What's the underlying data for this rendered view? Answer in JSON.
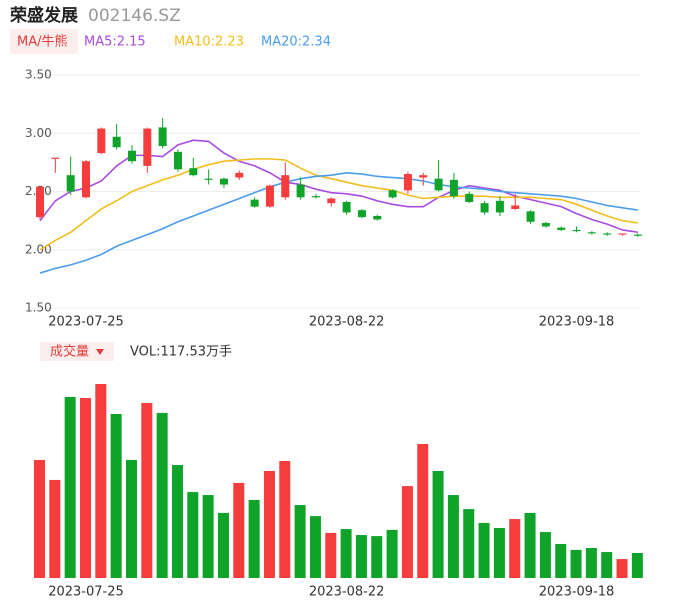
{
  "header": {
    "name": "荣盛发展",
    "code": "002146.SZ"
  },
  "chart_data": [
    {
      "type": "candlestick",
      "legend": [
        "MA/牛熊",
        "MA5:2.15",
        "MA10:2.23",
        "MA20:2.34"
      ],
      "categories": [
        null,
        null,
        null,
        "2023-07-25",
        null,
        null,
        null,
        null,
        null,
        null,
        null,
        null,
        null,
        null,
        null,
        null,
        null,
        null,
        null,
        null,
        "2023-08-22",
        null,
        null,
        null,
        null,
        null,
        null,
        null,
        null,
        null,
        null,
        null,
        null,
        null,
        null,
        "2023-09-18",
        null,
        null,
        null,
        null
      ],
      "open": [
        2.28,
        2.78,
        2.64,
        2.45,
        2.83,
        2.97,
        2.85,
        2.72,
        3.05,
        2.84,
        2.7,
        2.61,
        2.61,
        2.62,
        2.43,
        2.37,
        2.45,
        2.56,
        2.46,
        2.4,
        2.41,
        2.34,
        2.29,
        2.51,
        2.51,
        2.62,
        2.61,
        2.6,
        2.48,
        2.4,
        2.42,
        2.35,
        2.33,
        2.23,
        2.19,
        2.17,
        2.15,
        2.14,
        2.13,
        2.13
      ],
      "high": [
        2.55,
        2.79,
        2.8,
        2.77,
        3.05,
        3.08,
        2.9,
        3.05,
        3.13,
        2.86,
        2.79,
        2.69,
        2.62,
        2.68,
        2.45,
        2.56,
        2.75,
        2.62,
        2.48,
        2.45,
        2.42,
        2.35,
        2.3,
        2.52,
        2.67,
        2.66,
        2.77,
        2.66,
        2.5,
        2.42,
        2.46,
        2.48,
        2.34,
        2.24,
        2.2,
        2.2,
        2.16,
        2.15,
        2.14,
        2.14
      ],
      "low": [
        2.26,
        2.66,
        2.47,
        2.44,
        2.82,
        2.86,
        2.74,
        2.66,
        2.87,
        2.67,
        2.63,
        2.56,
        2.53,
        2.6,
        2.36,
        2.36,
        2.43,
        2.43,
        2.44,
        2.37,
        2.3,
        2.27,
        2.25,
        2.44,
        2.48,
        2.55,
        2.5,
        2.44,
        2.4,
        2.3,
        2.29,
        2.34,
        2.22,
        2.19,
        2.16,
        2.15,
        2.13,
        2.12,
        2.12,
        2.11
      ],
      "close": [
        2.54,
        2.79,
        2.5,
        2.76,
        3.04,
        2.88,
        2.76,
        3.04,
        2.89,
        2.69,
        2.64,
        2.6,
        2.56,
        2.66,
        2.37,
        2.55,
        2.64,
        2.45,
        2.45,
        2.44,
        2.32,
        2.28,
        2.26,
        2.45,
        2.65,
        2.64,
        2.51,
        2.46,
        2.41,
        2.32,
        2.32,
        2.38,
        2.24,
        2.2,
        2.17,
        2.16,
        2.14,
        2.13,
        2.14,
        2.12
      ],
      "up_color": "#f53d3d",
      "down_color": "#10a32a",
      "series": [
        {
          "name": "MA5",
          "color": "#a94ce0",
          "values": [
            2.25,
            2.42,
            2.5,
            2.53,
            2.59,
            2.72,
            2.81,
            2.81,
            2.8,
            2.9,
            2.94,
            2.93,
            2.83,
            2.76,
            2.72,
            2.66,
            2.58,
            2.56,
            2.52,
            2.49,
            2.48,
            2.46,
            2.42,
            2.39,
            2.37,
            2.37,
            2.45,
            2.51,
            2.55,
            2.53,
            2.51,
            2.46,
            2.43,
            2.4,
            2.37,
            2.31,
            2.26,
            2.22,
            2.17,
            2.15
          ]
        },
        {
          "name": "MA10",
          "color": "#f2bd1d",
          "values": [
            2.0,
            2.08,
            2.15,
            2.25,
            2.35,
            2.42,
            2.5,
            2.55,
            2.6,
            2.64,
            2.69,
            2.73,
            2.76,
            2.77,
            2.78,
            2.78,
            2.77,
            2.7,
            2.64,
            2.61,
            2.58,
            2.55,
            2.53,
            2.51,
            2.47,
            2.44,
            2.45,
            2.46,
            2.46,
            2.46,
            2.45,
            2.45,
            2.45,
            2.44,
            2.43,
            2.39,
            2.34,
            2.29,
            2.25,
            2.23
          ]
        },
        {
          "name": "MA20",
          "color": "#4a9ded",
          "values": [
            1.8,
            1.84,
            1.87,
            1.91,
            1.96,
            2.03,
            2.08,
            2.13,
            2.18,
            2.24,
            2.29,
            2.34,
            2.39,
            2.44,
            2.49,
            2.54,
            2.58,
            2.61,
            2.63,
            2.64,
            2.66,
            2.65,
            2.63,
            2.62,
            2.61,
            2.59,
            2.56,
            2.54,
            2.53,
            2.52,
            2.5,
            2.49,
            2.48,
            2.47,
            2.46,
            2.44,
            2.41,
            2.38,
            2.36,
            2.34
          ]
        }
      ],
      "ylim": [
        1.5,
        3.5
      ],
      "yticks": [
        {
          "value": 3.5,
          "label": "3.50"
        },
        {
          "value": 3.0,
          "label": "3.00"
        },
        {
          "value": 2.5,
          "label": "2.50"
        },
        {
          "value": 2.0,
          "label": "2.00"
        },
        {
          "value": 1.5,
          "label": "1.50"
        }
      ],
      "grid": true
    },
    {
      "type": "bar",
      "legend": [
        "成交量",
        "VOL:117.53万手"
      ],
      "values": [
        555,
        461,
        851,
        846,
        912,
        771,
        555,
        823,
        776,
        531,
        404,
        390,
        306,
        447,
        367,
        503,
        550,
        343,
        291,
        212,
        230,
        202,
        197,
        226,
        432,
        630,
        503,
        390,
        324,
        259,
        235,
        277,
        306,
        216,
        160,
        132,
        141,
        122,
        89,
        117.53
      ]
    }
  ]
}
